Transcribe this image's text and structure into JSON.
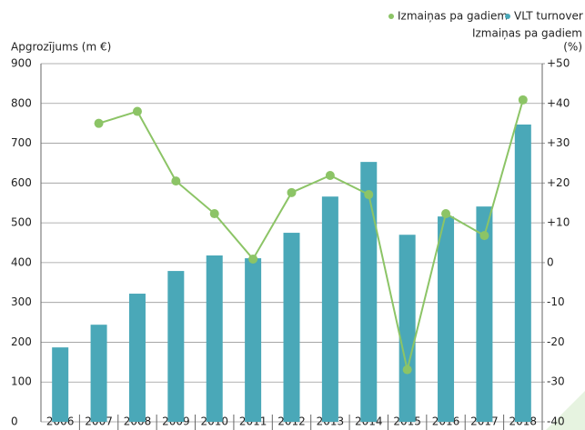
{
  "chart_data": {
    "type": "bar_line",
    "y_label": "Apgrozījums (m €)",
    "y2_label": [
      "Izmaiņas pa gadiem",
      "(%)"
    ],
    "categories": [
      "2006",
      "2007",
      "2008",
      "2009",
      "2010",
      "2011",
      "2012",
      "2013",
      "2014",
      "2015",
      "2016",
      "2017",
      "2018"
    ],
    "series": [
      {
        "name": "VLT turnover",
        "type": "bar",
        "color": "#4aa8b8",
        "values": [
          187,
          244,
          322,
          379,
          418,
          411,
          475,
          566,
          653,
          470,
          516,
          541,
          747
        ]
      },
      {
        "name": "Izmaiņas pa gadiem",
        "type": "line",
        "axis": "y2",
        "color": "#8cc466",
        "values": [
          null,
          35,
          38,
          20.5,
          12.3,
          0.9,
          17.6,
          21.9,
          17.1,
          -26.9,
          12.3,
          6.8,
          40.9
        ]
      }
    ],
    "ylim": [
      0,
      900
    ],
    "yticks": [
      0,
      100,
      200,
      300,
      400,
      500,
      600,
      700,
      800,
      900
    ],
    "y2lim": [
      -40,
      50
    ],
    "y2ticks": [
      -40,
      -30,
      -20,
      -10,
      0,
      {
        "value": 10,
        "label": "+10"
      },
      {
        "value": 20,
        "label": "+20"
      },
      {
        "value": 30,
        "label": "+30"
      },
      {
        "value": 40,
        "label": "+40"
      },
      {
        "value": 50,
        "label": "+50"
      }
    ],
    "grid": true
  }
}
